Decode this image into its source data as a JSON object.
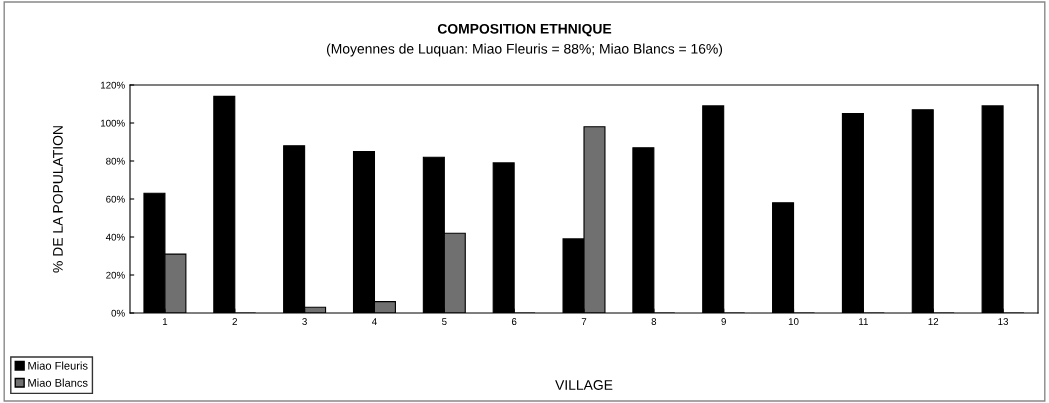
{
  "chart_data": {
    "type": "bar",
    "title": "COMPOSITION ETHNIQUE",
    "subtitle": "(Moyennes de Luquan: Miao Fleuris = 88%; Miao Blancs = 16%)",
    "xlabel": "VILLAGE",
    "ylabel": "% DE LA POPULATION",
    "categories": [
      "1",
      "2",
      "3",
      "4",
      "5",
      "6",
      "7",
      "8",
      "9",
      "10",
      "11",
      "12",
      "13"
    ],
    "series": [
      {
        "name": "Miao Fleuris",
        "color": "#000000",
        "values": [
          63,
          114,
          88,
          85,
          82,
          79,
          39,
          87,
          109,
          58,
          105,
          107,
          109
        ]
      },
      {
        "name": "Miao Blancs",
        "color": "#707070",
        "values": [
          31,
          0,
          3,
          6,
          42,
          0,
          98,
          0,
          0,
          0,
          0,
          0,
          0
        ]
      }
    ],
    "ylim": [
      0,
      120
    ],
    "yticks": [
      {
        "value": 0,
        "label": "0%"
      },
      {
        "value": 20,
        "label": "20%"
      },
      {
        "value": 40,
        "label": "40%"
      },
      {
        "value": 60,
        "label": "60%"
      },
      {
        "value": 80,
        "label": "80%"
      },
      {
        "value": 100,
        "label": "100%"
      },
      {
        "value": 120,
        "label": "120%"
      }
    ],
    "grid": false,
    "legend": "bottom left"
  }
}
